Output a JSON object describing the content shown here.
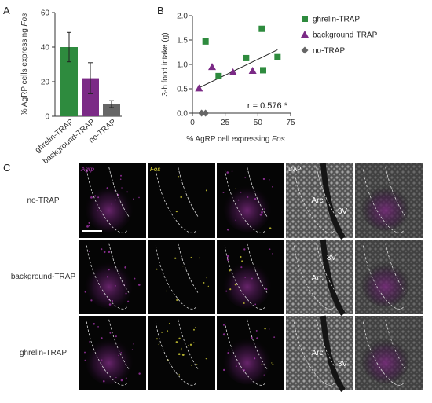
{
  "panel_letters": {
    "a": "A",
    "b": "B",
    "c": "C"
  },
  "colors": {
    "ghrelin": "#2e8b3e",
    "background": "#7b2a86",
    "notrap": "#666666",
    "agrp_magenta": "#b03ab8",
    "fos_yellow": "#e6e23a",
    "dapi_gray": "#9a9a9a"
  },
  "chart_data": [
    {
      "type": "bar",
      "panel": "A",
      "ylabel_prefix": "% AgRP cells expressing ",
      "ylabel_italic": "Fos",
      "ylim": [
        0,
        60
      ],
      "yticks": [
        "0",
        "20",
        "40",
        "60"
      ],
      "categories": [
        "ghrelin-TRAP",
        "background-TRAP",
        "no-TRAP"
      ],
      "values": [
        40,
        22,
        7
      ],
      "errors": [
        8.5,
        9,
        2
      ],
      "grid": false
    },
    {
      "type": "scatter",
      "panel": "B",
      "ylabel": "3-h food intake (g)",
      "xlabel_prefix": "% AgRP cell expressing ",
      "xlabel_italic": "Fos",
      "xlim": [
        0,
        75
      ],
      "ylim": [
        0,
        2.0
      ],
      "xticks": [
        "0",
        "25",
        "50",
        "75"
      ],
      "yticks": [
        "0.0",
        "0.5",
        "1.0",
        "1.5",
        "2.0"
      ],
      "grid": false,
      "legend_position": "right",
      "series": [
        {
          "name": "ghrelin-TRAP",
          "marker": "square",
          "x": [
            10,
            20,
            41,
            53,
            54,
            65
          ],
          "y": [
            1.47,
            0.76,
            1.13,
            1.73,
            0.88,
            1.15
          ]
        },
        {
          "name": "background-TRAP",
          "marker": "triangle",
          "x": [
            5,
            15,
            31,
            46
          ],
          "y": [
            0.51,
            0.95,
            0.84,
            0.87
          ]
        },
        {
          "name": "no-TRAP",
          "marker": "diamond",
          "x": [
            7,
            10
          ],
          "y": [
            0.0,
            0.0
          ]
        }
      ],
      "fit_line": {
        "x": [
          5,
          65
        ],
        "y": [
          0.52,
          1.3
        ]
      },
      "annotation": "r = 0.576 *"
    }
  ],
  "micrographs": {
    "column_labels": [
      "Agrp",
      "Fos",
      "",
      "DAPI",
      ""
    ],
    "column_label_italic": [
      true,
      true,
      false,
      false,
      false
    ],
    "row_labels": [
      "no-TRAP",
      "background-TRAP",
      "ghrelin-TRAP"
    ],
    "region_labels": {
      "row1": [
        "Arc",
        "3V"
      ],
      "row2": [
        "3V",
        "Arc"
      ],
      "row3": [
        "Arc",
        "3V"
      ]
    }
  }
}
